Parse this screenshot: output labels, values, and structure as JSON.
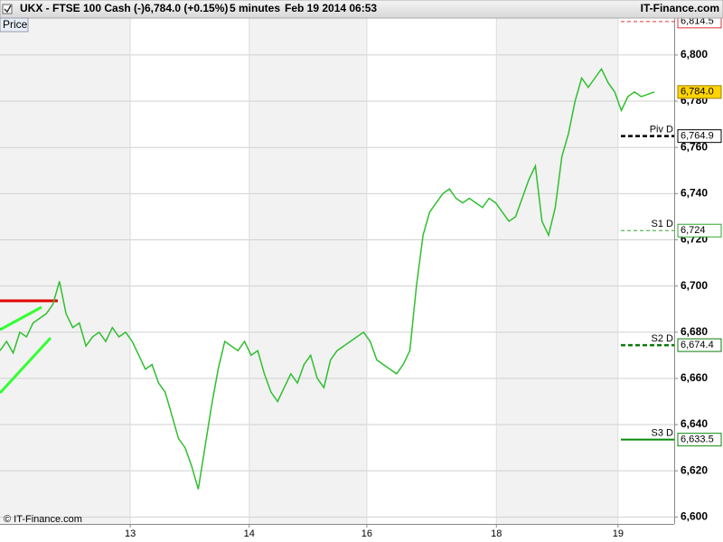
{
  "chart_data": {
    "type": "line",
    "title": "UKX - FTSE 100 Cash (-)",
    "last_change": "6,784.0 (+0.15%)",
    "interval": "5 minutes",
    "date": "Feb 19 2014 06:53",
    "source": "IT-Finance.com",
    "ylabel": "Price",
    "footer": "© IT-Finance.com",
    "series": [
      {
        "color": "#2fbf2f",
        "values": [
          6672,
          6676,
          6671,
          6680,
          6678,
          6684,
          6686,
          6688,
          6692,
          6702,
          6688,
          6682,
          6684,
          6674,
          6678,
          6680,
          6676,
          6682,
          6678,
          6680,
          6676,
          6670,
          6664,
          6666,
          6658,
          6654,
          6644,
          6634,
          6630,
          6622,
          6612,
          6630,
          6648,
          6664,
          6676,
          6674,
          6672,
          6676,
          6670,
          6672,
          6662,
          6654,
          6650,
          6656,
          6662,
          6658,
          6666,
          6670,
          6660,
          6656,
          6668,
          6672,
          6674,
          6676,
          6678,
          6680,
          6676,
          6668,
          6666,
          6664,
          6662,
          6666,
          6672,
          6700,
          6722,
          6732,
          6736,
          6740,
          6742,
          6738,
          6736,
          6738,
          6736,
          6734,
          6738,
          6736,
          6732,
          6728,
          6730,
          6738,
          6746,
          6752,
          6728,
          6722,
          6734,
          6756,
          6766,
          6780,
          6790,
          6786,
          6790,
          6794,
          6788,
          6784,
          6776,
          6782,
          6784,
          6782,
          6783,
          6784
        ]
      }
    ],
    "xlim": [
      0,
      102
    ],
    "xticks": [
      {
        "value": 19.7,
        "label": "13"
      },
      {
        "value": 37.7,
        "label": "14"
      },
      {
        "value": 55.5,
        "label": "16"
      },
      {
        "value": 75.1,
        "label": "18"
      },
      {
        "value": 93.5,
        "label": "19"
      }
    ],
    "ylim": [
      6597,
      6816
    ],
    "yticks": [
      {
        "value": 6600,
        "label": "6,600"
      },
      {
        "value": 6620,
        "label": "6,620"
      },
      {
        "value": 6640,
        "label": "6,640"
      },
      {
        "value": 6660,
        "label": "6,660"
      },
      {
        "value": 6680,
        "label": "6,680"
      },
      {
        "value": 6700,
        "label": "6,700"
      },
      {
        "value": 6720,
        "label": "6,720"
      },
      {
        "value": 6740,
        "label": "6,740"
      },
      {
        "value": 6760,
        "label": "6,760"
      },
      {
        "value": 6780,
        "label": "6,780"
      },
      {
        "value": 6800,
        "label": "6,800"
      }
    ],
    "grid": true,
    "last": {
      "value": 6784.0,
      "label": "6,784.0"
    },
    "levels": [
      {
        "value": 6814.5,
        "label": "6,814.5",
        "color": "#e03030",
        "style": "dashed"
      },
      {
        "name": "Piv D",
        "value": 6764.9,
        "label": "6,764.9",
        "color": "#000000",
        "style": "thick-dashed"
      },
      {
        "name": "S1 D",
        "value": 6724,
        "label": "6,724",
        "color": "#2fa82f",
        "style": "dashed"
      },
      {
        "name": "S2 D",
        "value": 6674.4,
        "label": "6,674.4",
        "color": "#0a7a0a",
        "style": "thick-dashed"
      },
      {
        "name": "S3 D",
        "value": 6633.5,
        "label": "6,633.5",
        "color": "#0a8a0a",
        "style": "solid"
      }
    ]
  }
}
